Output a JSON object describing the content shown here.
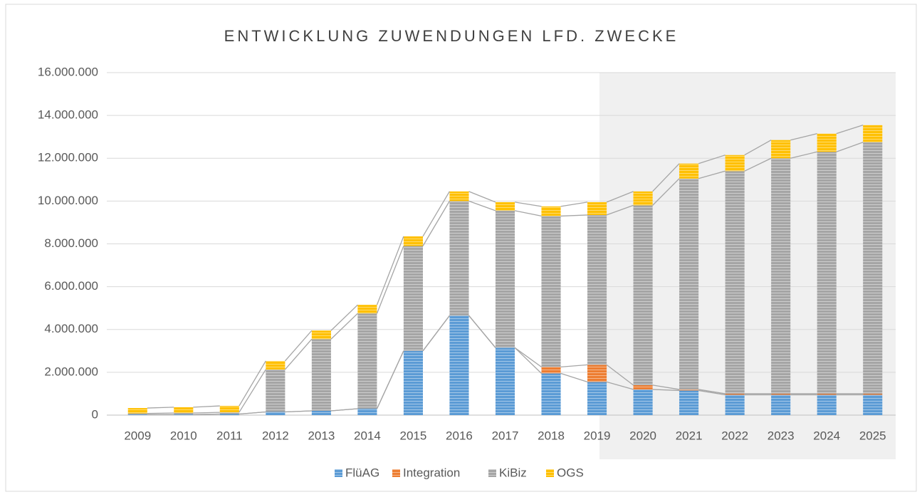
{
  "chart_data": {
    "type": "stacked_bar",
    "title": "ENTWICKLUNG ZUWENDUNGEN LFD. ZWECKE",
    "categories": [
      "2009",
      "2010",
      "2011",
      "2012",
      "2013",
      "2014",
      "2015",
      "2016",
      "2017",
      "2018",
      "2019",
      "2020",
      "2021",
      "2022",
      "2023",
      "2024",
      "2025"
    ],
    "series": [
      {
        "name": "FlüAG",
        "color": "#5b9bd5",
        "values": [
          30000,
          30000,
          50000,
          150000,
          200000,
          300000,
          3000000,
          4650000,
          3150000,
          1950000,
          1550000,
          1200000,
          1150000,
          950000,
          950000,
          950000,
          950000
        ]
      },
      {
        "name": "Integration",
        "color": "#ed7d31",
        "values": [
          0,
          0,
          0,
          0,
          0,
          0,
          0,
          0,
          0,
          300000,
          800000,
          200000,
          50000,
          50000,
          50000,
          50000,
          50000
        ]
      },
      {
        "name": "KiBiz",
        "color": "#a5a5a5",
        "values": [
          50000,
          70000,
          80000,
          1980000,
          3350000,
          4450000,
          4900000,
          5350000,
          6400000,
          7050000,
          7000000,
          8400000,
          9850000,
          10400000,
          11000000,
          11300000,
          11750000
        ]
      },
      {
        "name": "OGS",
        "color": "#ffc000",
        "values": [
          250000,
          270000,
          300000,
          400000,
          400000,
          400000,
          450000,
          450000,
          400000,
          450000,
          600000,
          650000,
          700000,
          750000,
          850000,
          850000,
          800000
        ]
      }
    ],
    "ylim": [
      0,
      16000000
    ],
    "yticks": [
      0,
      {
        "value": 2000000,
        "label": "2.000.000"
      },
      {
        "value": 4000000,
        "label": "4.000.000"
      },
      {
        "value": 6000000,
        "label": "6.000.000"
      },
      {
        "value": 8000000,
        "label": "8.000.000"
      },
      {
        "value": 10000000,
        "label": "10.000.000"
      },
      {
        "value": 12000000,
        "label": "12.000.000"
      },
      {
        "value": 14000000,
        "label": "14.000.000"
      },
      {
        "value": 16000000,
        "label": "16.000.000"
      }
    ],
    "grid": true,
    "legend": "bottom",
    "series_lines": true
  }
}
